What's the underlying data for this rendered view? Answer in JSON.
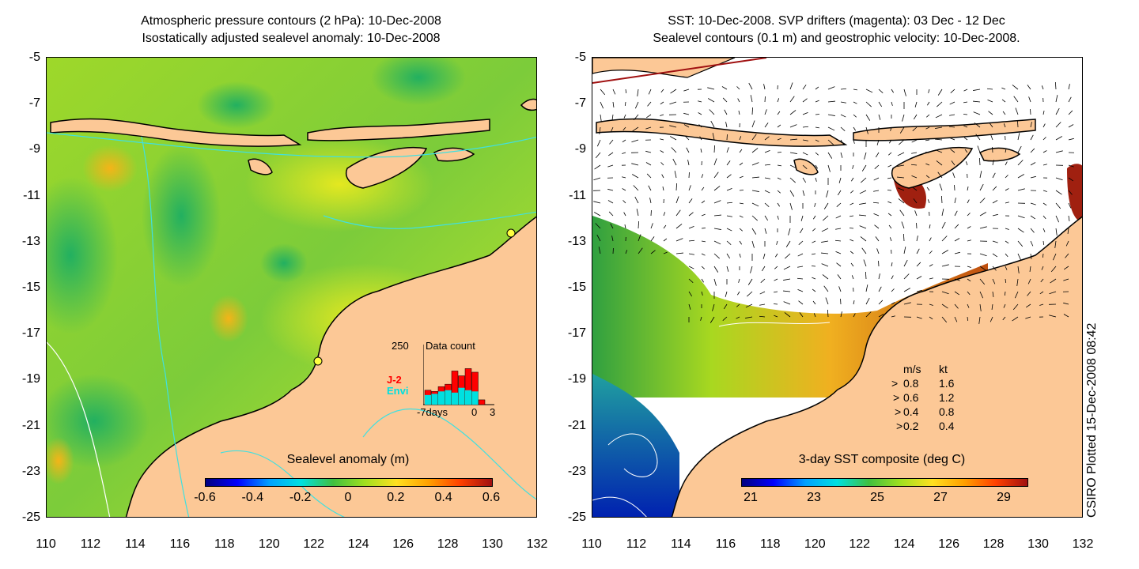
{
  "left_panel": {
    "title_line1": "Atmospheric pressure contours (2 hPa): 10-Dec-2008",
    "title_line2": "Isostatically adjusted sealevel anomaly: 10-Dec-2008",
    "colorbar_title": "Sealevel anomaly (m)",
    "colorbar_ticks": [
      "-0.6",
      "-0.4",
      "-0.2",
      "0",
      "0.2",
      "0.4",
      "0.6"
    ],
    "inset": {
      "max_label": "250",
      "title": "Data count",
      "series": [
        {
          "name": "J-2",
          "color": "#ff0000"
        },
        {
          "name": "Envi",
          "color": "#00e0e0"
        }
      ],
      "x_start": "-7days",
      "x_zero": "0",
      "x_end": "3",
      "envi_counts": [
        40,
        45,
        55,
        60,
        50,
        70,
        60,
        55,
        0,
        0
      ],
      "j2_counts": [
        60,
        55,
        75,
        85,
        140,
        120,
        150,
        135,
        20,
        0
      ]
    }
  },
  "right_panel": {
    "title_line1": "SST: 10-Dec-2008. SVP drifters (magenta): 03 Dec - 12 Dec",
    "title_line2": "Sealevel contours (0.1 m) and geostrophic velocity: 10-Dec-2008.",
    "colorbar_title": "3-day SST composite (deg C)",
    "colorbar_ticks": [
      "21",
      "23",
      "25",
      "27",
      "29"
    ],
    "velocity_legend": {
      "header_ms": "m/s",
      "header_kt": "kt",
      "rows": [
        {
          "ms": "0.8",
          "kt": "1.6"
        },
        {
          "ms": "0.6",
          "kt": "1.2"
        },
        {
          "ms": "0.4",
          "kt": "0.8"
        },
        {
          "ms": "0.2",
          "kt": "0.4"
        }
      ]
    }
  },
  "axes": {
    "x_ticks": [
      "110",
      "112",
      "114",
      "116",
      "118",
      "120",
      "122",
      "124",
      "126",
      "128",
      "130",
      "132"
    ],
    "y_ticks": [
      "-5",
      "-7",
      "-9",
      "-11",
      "-13",
      "-15",
      "-17",
      "-19",
      "-21",
      "-23",
      "-25"
    ]
  },
  "side_note": "CSIRO Plotted 15-Dec-2008 08:42",
  "colors": {
    "land": "#fcc896",
    "coast": "#000000",
    "contour": "#40e0e0"
  }
}
